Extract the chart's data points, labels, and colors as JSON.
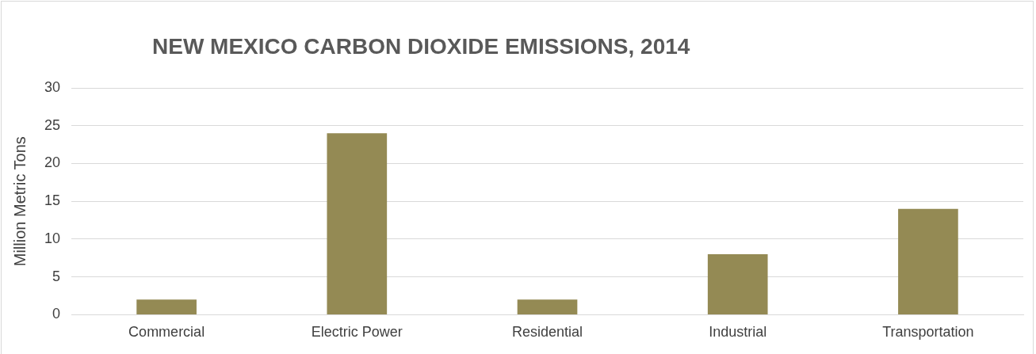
{
  "chart_data": {
    "type": "bar",
    "title": "NEW MEXICO CARBON DIOXIDE EMISSIONS, 2014",
    "ylabel": "Million Metric Tons",
    "categories": [
      "Commercial",
      "Electric Power",
      "Residential",
      "Industrial",
      "Transportation"
    ],
    "values": [
      2,
      24,
      2,
      8,
      14
    ],
    "color": "#948a54",
    "ylim": [
      0,
      30
    ],
    "yticks": [
      0,
      5,
      10,
      15,
      20,
      25,
      30
    ],
    "grid": "y"
  }
}
